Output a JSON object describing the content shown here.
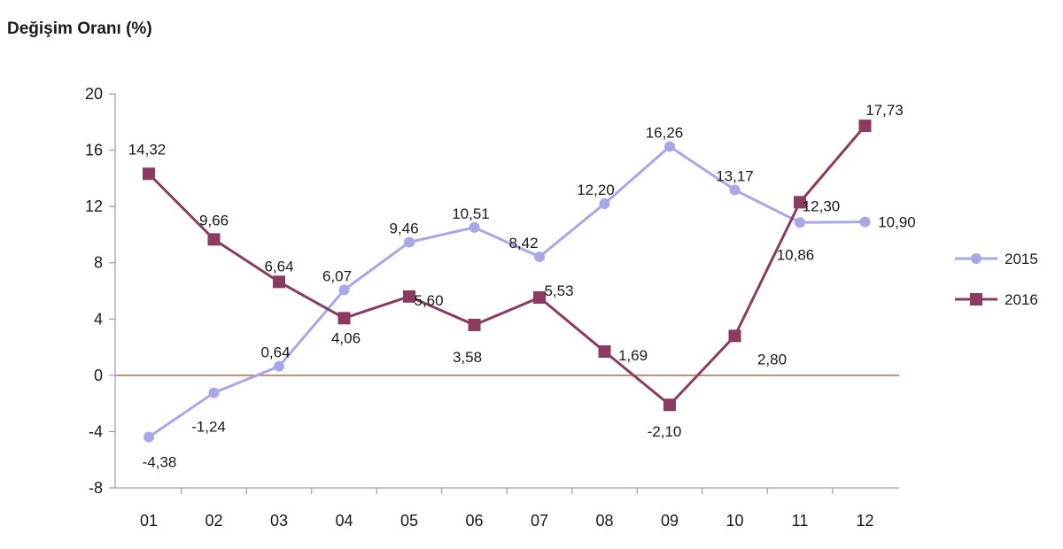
{
  "chart_data": {
    "type": "line",
    "title": "Değişim Oranı (%)",
    "xlabel": "",
    "ylabel": "",
    "categories": [
      "01",
      "02",
      "03",
      "04",
      "05",
      "06",
      "07",
      "08",
      "09",
      "10",
      "11",
      "12"
    ],
    "ylim": [
      -8,
      20
    ],
    "yticks": [
      -8,
      -4,
      0,
      4,
      8,
      12,
      16,
      20
    ],
    "ytick_labels": [
      "-8",
      "-4",
      "0",
      "4",
      "8",
      "12",
      "16",
      "20"
    ],
    "grid": false,
    "legend_position": "right",
    "series": [
      {
        "name": "2015",
        "color": "#a8a8e8",
        "marker": "circle",
        "values": [
          -4.38,
          -1.24,
          0.64,
          6.07,
          9.46,
          10.51,
          8.42,
          12.2,
          16.26,
          13.17,
          10.86,
          10.9
        ],
        "labels": [
          "-4,38",
          "-1,24",
          "0,64",
          "6,07",
          "9,46",
          "10,51",
          "8,42",
          "12,20",
          "16,26",
          "13,17",
          "10,86",
          "10,90"
        ]
      },
      {
        "name": "2016",
        "color": "#8b3a62",
        "marker": "square",
        "values": [
          14.32,
          9.66,
          6.64,
          4.06,
          5.6,
          3.58,
          5.53,
          1.69,
          -2.1,
          2.8,
          12.3,
          17.73
        ],
        "labels": [
          "14,32",
          "9,66",
          "6,64",
          "4,06",
          "5,60",
          "3,58",
          "5,53",
          "1,69",
          "-2,10",
          "2,80",
          "12,30",
          "17,73"
        ]
      }
    ],
    "zero_line_color": "#c0644a",
    "axis_color": "#8a8a8a"
  }
}
